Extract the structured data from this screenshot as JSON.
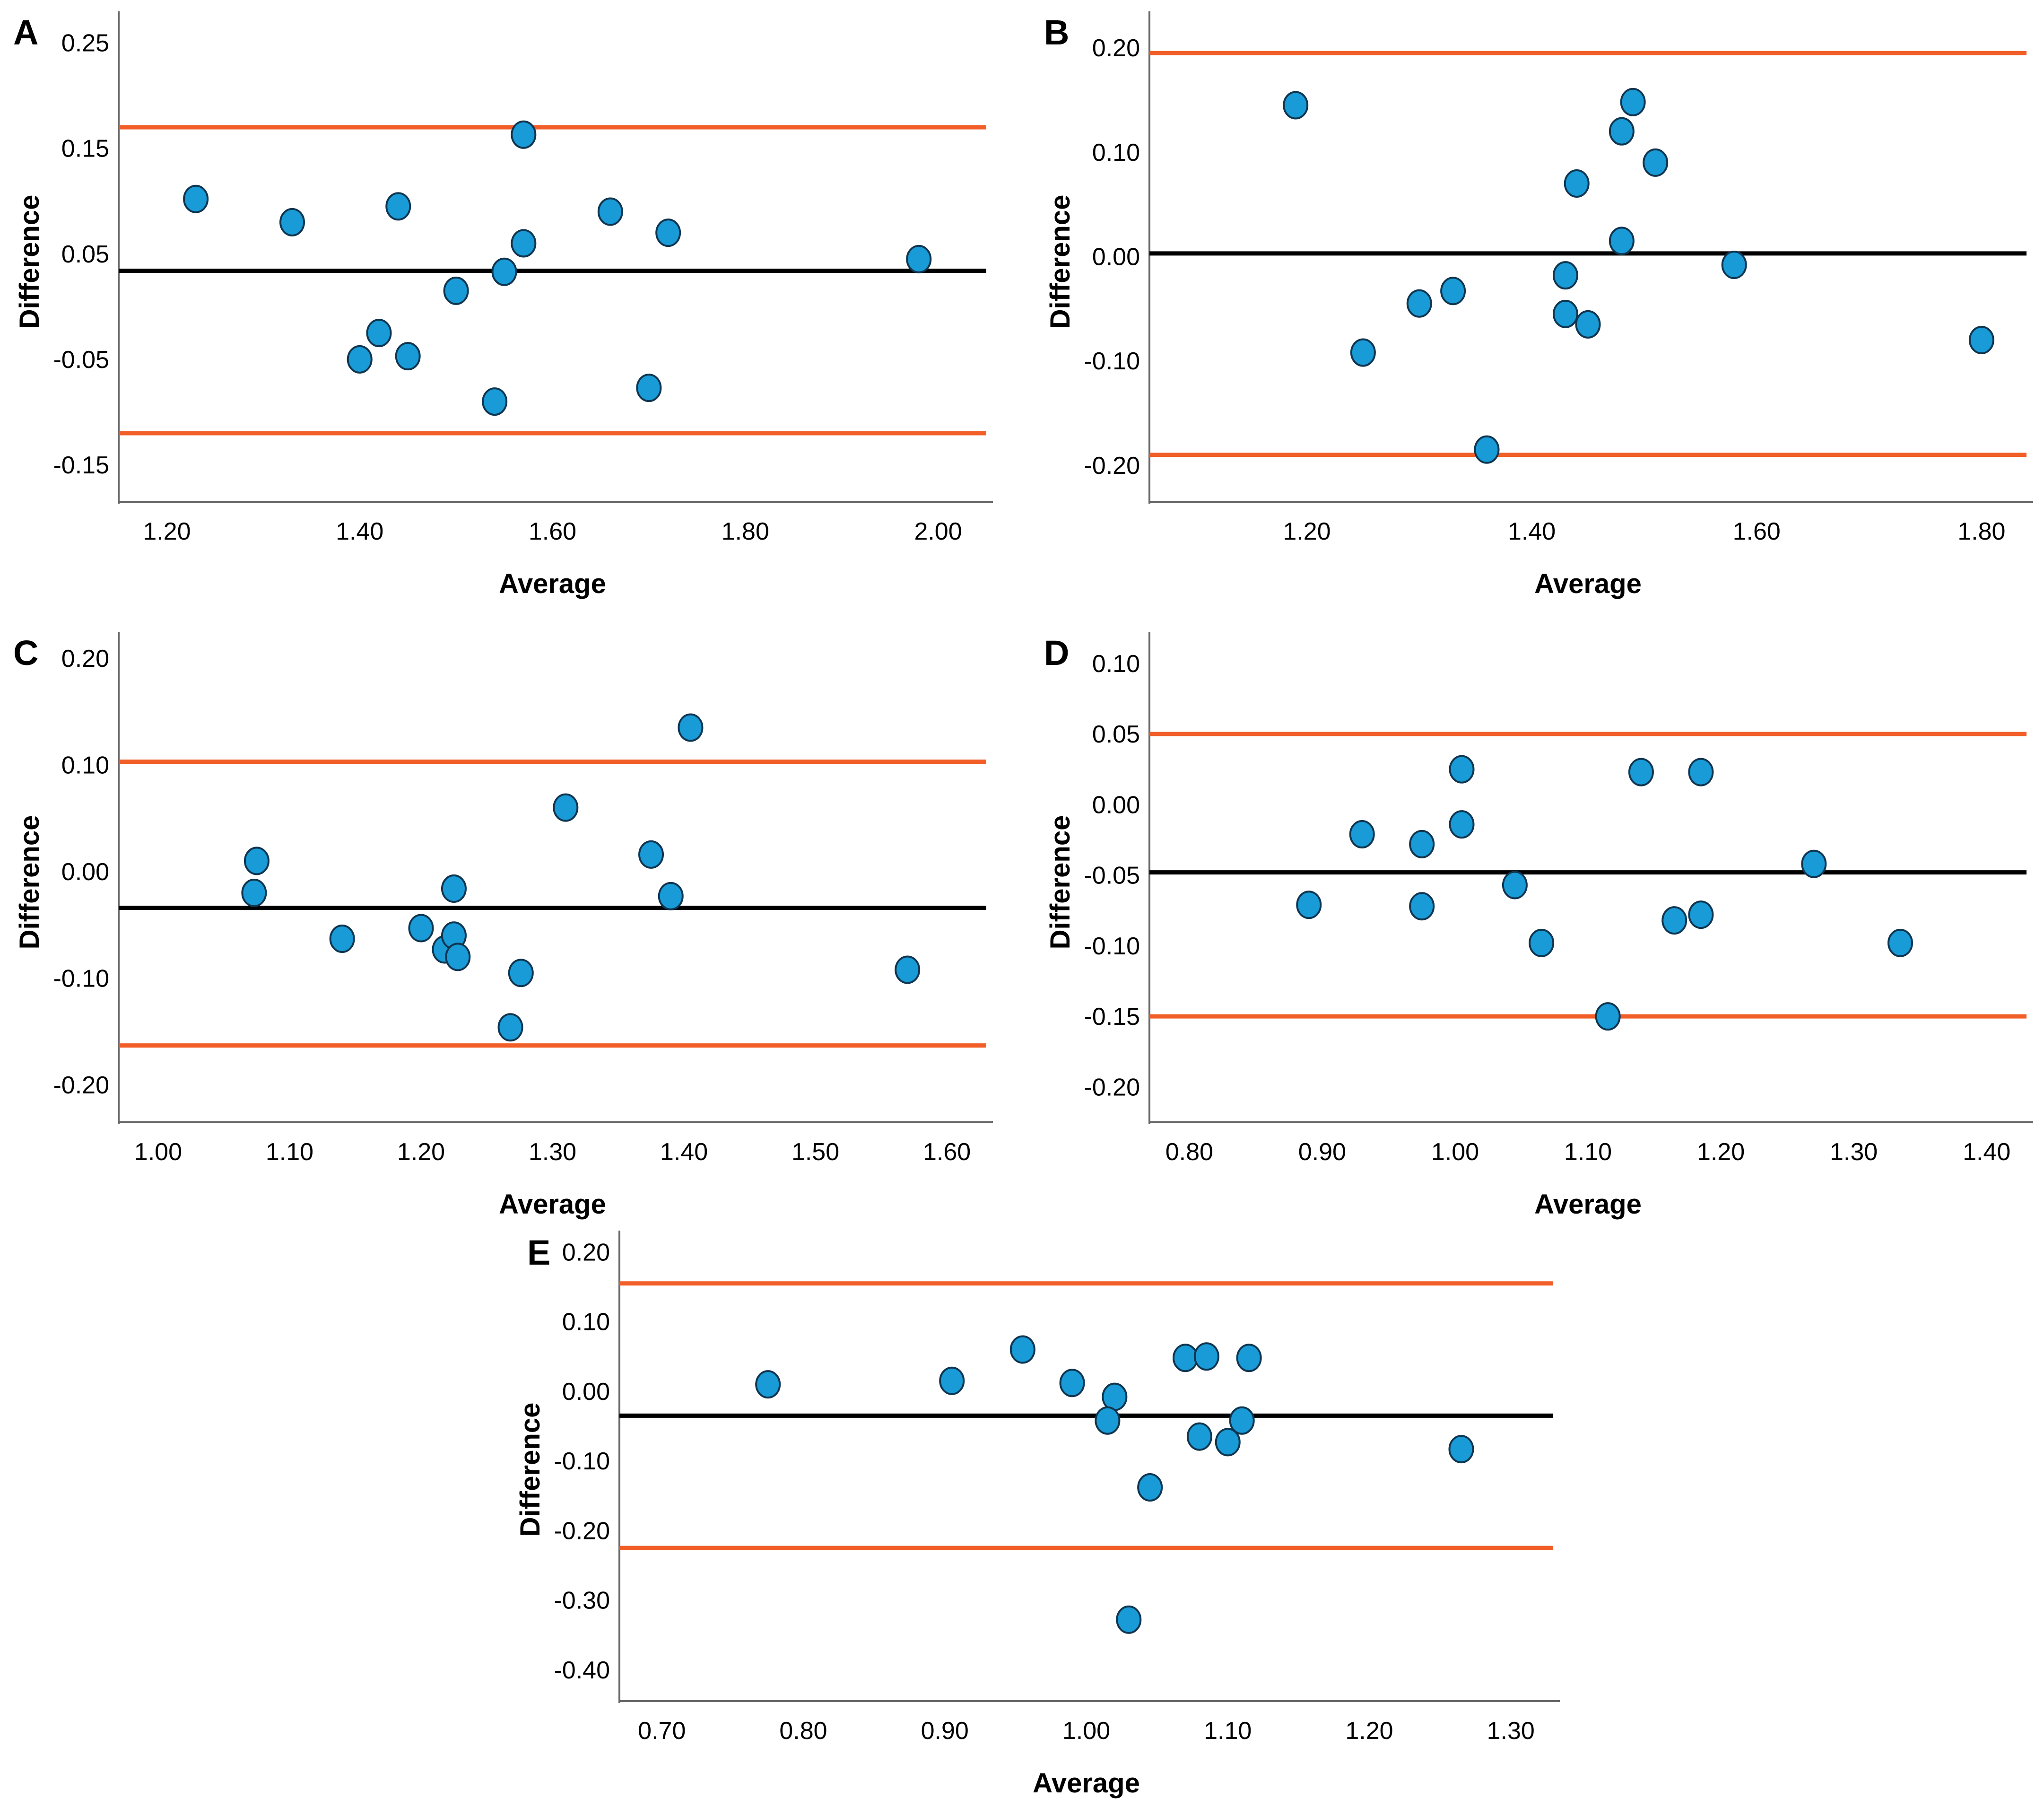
{
  "page": {
    "background": "#ffffff"
  },
  "colors": {
    "point_fill": "#189BD7",
    "point_stroke": "#10354F",
    "mean_line": "#000000",
    "loa_line": "#F15E27",
    "axis": "#666666",
    "text": "#000000"
  },
  "chart_data": [
    {
      "type": "scatter",
      "panel": "A",
      "title": "",
      "xlabel": "Average",
      "ylabel": "Difference",
      "xlim": [
        1.15,
        2.05
      ],
      "ylim": [
        -0.185,
        0.27
      ],
      "grid": false,
      "legend": false,
      "xticks": [
        {
          "value": 1.2,
          "label": "1.20"
        },
        {
          "value": 1.4,
          "label": "1.40"
        },
        {
          "value": 1.6,
          "label": "1.60"
        },
        {
          "value": 1.8,
          "label": "1.80"
        },
        {
          "value": 2.0,
          "label": "2.00"
        }
      ],
      "yticks": [
        {
          "value": 0.25,
          "label": "0.25"
        },
        {
          "value": 0.15,
          "label": "0.15"
        },
        {
          "value": 0.05,
          "label": "0.05"
        },
        {
          "value": -0.05,
          "label": "-0.05"
        },
        {
          "value": -0.15,
          "label": "-0.15"
        }
      ],
      "mean_line": 0.034,
      "upper_loa": 0.17,
      "lower_loa": -0.12,
      "points": [
        [
          1.23,
          0.102
        ],
        [
          1.33,
          0.08
        ],
        [
          1.44,
          0.095
        ],
        [
          1.4,
          -0.05
        ],
        [
          1.42,
          -0.025
        ],
        [
          1.45,
          -0.047
        ],
        [
          1.5,
          0.015
        ],
        [
          1.55,
          0.033
        ],
        [
          1.54,
          -0.09
        ],
        [
          1.57,
          0.163
        ],
        [
          1.57,
          0.06
        ],
        [
          1.66,
          0.09
        ],
        [
          1.7,
          -0.077
        ],
        [
          1.72,
          0.07
        ],
        [
          1.98,
          0.045
        ]
      ]
    },
    {
      "type": "scatter",
      "panel": "B",
      "title": "",
      "xlabel": "Average",
      "ylabel": "Difference",
      "xlim": [
        1.06,
        1.84
      ],
      "ylim": [
        -0.235,
        0.225
      ],
      "grid": false,
      "legend": false,
      "xticks": [
        {
          "value": 1.2,
          "label": "1.20"
        },
        {
          "value": 1.4,
          "label": "1.40"
        },
        {
          "value": 1.6,
          "label": "1.60"
        },
        {
          "value": 1.8,
          "label": "1.80"
        }
      ],
      "yticks": [
        {
          "value": 0.2,
          "label": "0.20"
        },
        {
          "value": 0.1,
          "label": "0.10"
        },
        {
          "value": 0.0,
          "label": "0.00"
        },
        {
          "value": -0.1,
          "label": "-0.10"
        },
        {
          "value": -0.2,
          "label": "-0.20"
        }
      ],
      "mean_line": 0.003,
      "upper_loa": 0.195,
      "lower_loa": -0.19,
      "points": [
        [
          1.19,
          0.145
        ],
        [
          1.25,
          -0.092
        ],
        [
          1.3,
          -0.045
        ],
        [
          1.33,
          -0.033
        ],
        [
          1.36,
          -0.185
        ],
        [
          1.43,
          -0.018
        ],
        [
          1.43,
          -0.055
        ],
        [
          1.44,
          0.07
        ],
        [
          1.45,
          -0.065
        ],
        [
          1.48,
          0.12
        ],
        [
          1.49,
          0.148
        ],
        [
          1.48,
          0.015
        ],
        [
          1.51,
          0.09
        ],
        [
          1.58,
          -0.008
        ],
        [
          1.8,
          -0.08
        ]
      ]
    },
    {
      "type": "scatter",
      "panel": "C",
      "title": "",
      "xlabel": "Average",
      "ylabel": "Difference",
      "xlim": [
        0.97,
        1.63
      ],
      "ylim": [
        -0.235,
        0.215
      ],
      "grid": false,
      "legend": false,
      "xticks": [
        {
          "value": 1.0,
          "label": "1.00"
        },
        {
          "value": 1.1,
          "label": "1.10"
        },
        {
          "value": 1.2,
          "label": "1.20"
        },
        {
          "value": 1.3,
          "label": "1.30"
        },
        {
          "value": 1.4,
          "label": "1.40"
        },
        {
          "value": 1.5,
          "label": "1.50"
        },
        {
          "value": 1.6,
          "label": "1.60"
        }
      ],
      "yticks": [
        {
          "value": 0.2,
          "label": "0.20"
        },
        {
          "value": 0.1,
          "label": "0.10"
        },
        {
          "value": 0.0,
          "label": "0.00"
        },
        {
          "value": -0.1,
          "label": "-0.10"
        },
        {
          "value": -0.2,
          "label": "-0.20"
        }
      ],
      "mean_line": -0.034,
      "upper_loa": 0.103,
      "lower_loa": -0.163,
      "points": [
        [
          1.075,
          0.01
        ],
        [
          1.073,
          -0.02
        ],
        [
          1.14,
          -0.063
        ],
        [
          1.2,
          -0.053
        ],
        [
          1.218,
          -0.073
        ],
        [
          1.225,
          -0.06
        ],
        [
          1.228,
          -0.08
        ],
        [
          1.225,
          -0.016
        ],
        [
          1.276,
          -0.095
        ],
        [
          1.268,
          -0.146
        ],
        [
          1.31,
          0.06
        ],
        [
          1.375,
          0.016
        ],
        [
          1.39,
          -0.023
        ],
        [
          1.405,
          0.135
        ],
        [
          1.57,
          -0.092
        ]
      ]
    },
    {
      "type": "scatter",
      "panel": "D",
      "title": "",
      "xlabel": "Average",
      "ylabel": "Difference",
      "xlim": [
        0.77,
        1.43
      ],
      "ylim": [
        -0.225,
        0.115
      ],
      "grid": false,
      "legend": false,
      "xticks": [
        {
          "value": 0.8,
          "label": "0.80"
        },
        {
          "value": 0.9,
          "label": "0.90"
        },
        {
          "value": 1.0,
          "label": "1.00"
        },
        {
          "value": 1.1,
          "label": "1.10"
        },
        {
          "value": 1.2,
          "label": "1.20"
        },
        {
          "value": 1.3,
          "label": "1.30"
        },
        {
          "value": 1.4,
          "label": "1.40"
        }
      ],
      "yticks": [
        {
          "value": 0.1,
          "label": "0.10"
        },
        {
          "value": 0.05,
          "label": "0.05"
        },
        {
          "value": 0.0,
          "label": "0.00"
        },
        {
          "value": -0.05,
          "label": "-0.05"
        },
        {
          "value": -0.1,
          "label": "-0.10"
        },
        {
          "value": -0.15,
          "label": "-0.15"
        },
        {
          "value": -0.2,
          "label": "-0.20"
        }
      ],
      "mean_line": -0.048,
      "upper_loa": 0.05,
      "lower_loa": -0.15,
      "points": [
        [
          0.89,
          -0.071
        ],
        [
          0.93,
          -0.021
        ],
        [
          0.975,
          -0.028
        ],
        [
          0.975,
          -0.072
        ],
        [
          1.005,
          0.025
        ],
        [
          1.005,
          -0.014
        ],
        [
          1.045,
          -0.057
        ],
        [
          1.065,
          -0.098
        ],
        [
          1.115,
          -0.15
        ],
        [
          1.14,
          0.023
        ],
        [
          1.165,
          -0.082
        ],
        [
          1.185,
          -0.078
        ],
        [
          1.185,
          0.023
        ],
        [
          1.27,
          -0.042
        ],
        [
          1.335,
          -0.098
        ]
      ]
    },
    {
      "type": "scatter",
      "panel": "E",
      "title": "",
      "xlabel": "Average",
      "ylabel": "Difference",
      "xlim": [
        0.67,
        1.33
      ],
      "ylim": [
        -0.445,
        0.22
      ],
      "grid": false,
      "legend": false,
      "xticks": [
        {
          "value": 0.7,
          "label": "0.70"
        },
        {
          "value": 0.8,
          "label": "0.80"
        },
        {
          "value": 0.9,
          "label": "0.90"
        },
        {
          "value": 1.0,
          "label": "1.00"
        },
        {
          "value": 1.1,
          "label": "1.10"
        },
        {
          "value": 1.2,
          "label": "1.20"
        },
        {
          "value": 1.3,
          "label": "1.30"
        }
      ],
      "yticks": [
        {
          "value": 0.2,
          "label": "0.20"
        },
        {
          "value": 0.1,
          "label": "0.10"
        },
        {
          "value": 0.0,
          "label": "0.00"
        },
        {
          "value": -0.1,
          "label": "-0.10"
        },
        {
          "value": -0.2,
          "label": "-0.20"
        },
        {
          "value": -0.3,
          "label": "-0.30"
        },
        {
          "value": -0.4,
          "label": "-0.40"
        }
      ],
      "mean_line": -0.035,
      "upper_loa": 0.155,
      "lower_loa": -0.225,
      "points": [
        [
          0.775,
          0.01
        ],
        [
          0.905,
          0.015
        ],
        [
          0.955,
          0.06
        ],
        [
          0.99,
          0.012
        ],
        [
          1.02,
          -0.008
        ],
        [
          1.015,
          -0.042
        ],
        [
          1.045,
          -0.138
        ],
        [
          1.03,
          -0.328
        ],
        [
          1.07,
          0.048
        ],
        [
          1.085,
          0.05
        ],
        [
          1.115,
          0.048
        ],
        [
          1.08,
          -0.065
        ],
        [
          1.1,
          -0.073
        ],
        [
          1.11,
          -0.042
        ],
        [
          1.265,
          -0.083
        ]
      ]
    }
  ]
}
